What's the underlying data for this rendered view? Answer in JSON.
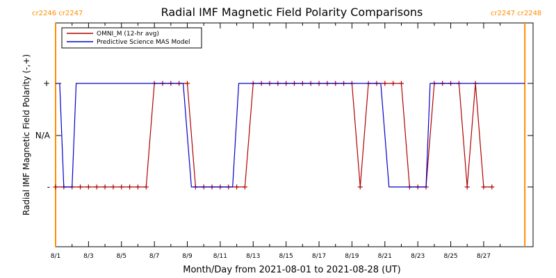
{
  "chart_data": {
    "type": "line",
    "title": "Radial IMF Magnetic Field Polarity Comparisons",
    "xlabel": "Month/Day from 2021-08-01 to 2021-08-28 (UT)",
    "ylabel": "Radial IMF Magnetic Field Polarity (-,+)",
    "xlim": [
      "2021-08-01",
      "2021-08-30"
    ],
    "x_ticks": [
      "8/1",
      "8/3",
      "8/5",
      "8/7",
      "8/9",
      "8/11",
      "8/13",
      "8/15",
      "8/17",
      "8/19",
      "8/21",
      "8/23",
      "8/25",
      "8/27"
    ],
    "y_ticks": [
      "+",
      "N/A",
      "-"
    ],
    "carrington_markers": [
      {
        "time": "2021-08-01",
        "label": "cr2246 cr2247",
        "color": "#ff8c00",
        "label_side": "left"
      },
      {
        "time": "2021-08-29T12:00",
        "label": "cr2247 cr2248",
        "color": "#ff8c00",
        "label_side": "right"
      }
    ],
    "legend": {
      "position": "top-left"
    },
    "series": [
      {
        "name": "OMNI_M (12-hr avg)",
        "color": "#b00000",
        "markers": true,
        "points": [
          [
            "2021-08-01T00:00",
            "-"
          ],
          [
            "2021-08-01T12:00",
            "-"
          ],
          [
            "2021-08-02T00:00",
            "-"
          ],
          [
            "2021-08-02T12:00",
            "-"
          ],
          [
            "2021-08-03T00:00",
            "-"
          ],
          [
            "2021-08-03T12:00",
            "-"
          ],
          [
            "2021-08-04T00:00",
            "-"
          ],
          [
            "2021-08-04T12:00",
            "-"
          ],
          [
            "2021-08-05T00:00",
            "-"
          ],
          [
            "2021-08-05T12:00",
            "-"
          ],
          [
            "2021-08-06T00:00",
            "-"
          ],
          [
            "2021-08-06T12:00",
            "-"
          ],
          [
            "2021-08-07T00:00",
            "+"
          ],
          [
            "2021-08-07T12:00",
            "+"
          ],
          [
            "2021-08-08T00:00",
            "+"
          ],
          [
            "2021-08-08T12:00",
            "+"
          ],
          [
            "2021-08-09T00:00",
            "+"
          ],
          [
            "2021-08-09T12:00",
            "-"
          ],
          [
            "2021-08-10T00:00",
            "-"
          ],
          [
            "2021-08-10T12:00",
            "-"
          ],
          [
            "2021-08-11T00:00",
            "-"
          ],
          [
            "2021-08-11T12:00",
            "-"
          ],
          [
            "2021-08-12T00:00",
            "-"
          ],
          [
            "2021-08-12T12:00",
            "-"
          ],
          [
            "2021-08-13T00:00",
            "+"
          ],
          [
            "2021-08-13T12:00",
            "+"
          ],
          [
            "2021-08-14T00:00",
            "+"
          ],
          [
            "2021-08-14T12:00",
            "+"
          ],
          [
            "2021-08-15T00:00",
            "+"
          ],
          [
            "2021-08-15T12:00",
            "+"
          ],
          [
            "2021-08-16T00:00",
            "+"
          ],
          [
            "2021-08-16T12:00",
            "+"
          ],
          [
            "2021-08-17T00:00",
            "+"
          ],
          [
            "2021-08-17T12:00",
            "+"
          ],
          [
            "2021-08-18T00:00",
            "+"
          ],
          [
            "2021-08-18T12:00",
            "+"
          ],
          [
            "2021-08-19T00:00",
            "+"
          ],
          [
            "2021-08-19T12:00",
            "-"
          ],
          [
            "2021-08-20T00:00",
            "+"
          ],
          [
            "2021-08-20T12:00",
            "+"
          ],
          [
            "2021-08-21T00:00",
            "+"
          ],
          [
            "2021-08-21T12:00",
            "+"
          ],
          [
            "2021-08-22T00:00",
            "+"
          ],
          [
            "2021-08-22T12:00",
            "-"
          ],
          [
            "2021-08-23T00:00",
            "-"
          ],
          [
            "2021-08-23T12:00",
            "-"
          ],
          [
            "2021-08-24T00:00",
            "+"
          ],
          [
            "2021-08-24T12:00",
            "+"
          ],
          [
            "2021-08-25T00:00",
            "+"
          ],
          [
            "2021-08-25T12:00",
            "+"
          ],
          [
            "2021-08-26T00:00",
            "-"
          ],
          [
            "2021-08-26T12:00",
            "+"
          ],
          [
            "2021-08-27T00:00",
            "-"
          ],
          [
            "2021-08-27T12:00",
            "-"
          ]
        ]
      },
      {
        "name": "Predictive Science MAS Model",
        "color": "#0000cc",
        "markers": false,
        "points": [
          [
            "2021-08-01T00:00",
            "+"
          ],
          [
            "2021-08-01T06:00",
            "+"
          ],
          [
            "2021-08-01T12:00",
            "-"
          ],
          [
            "2021-08-02T00:00",
            "-"
          ],
          [
            "2021-08-02T06:00",
            "+"
          ],
          [
            "2021-08-08T18:00",
            "+"
          ],
          [
            "2021-08-09T06:00",
            "-"
          ],
          [
            "2021-08-11T18:00",
            "-"
          ],
          [
            "2021-08-12T03:00",
            "+"
          ],
          [
            "2021-08-20T18:00",
            "+"
          ],
          [
            "2021-08-21T06:00",
            "-"
          ],
          [
            "2021-08-23T12:00",
            "-"
          ],
          [
            "2021-08-23T18:00",
            "+"
          ],
          [
            "2021-08-29T12:00",
            "+"
          ]
        ]
      }
    ]
  }
}
